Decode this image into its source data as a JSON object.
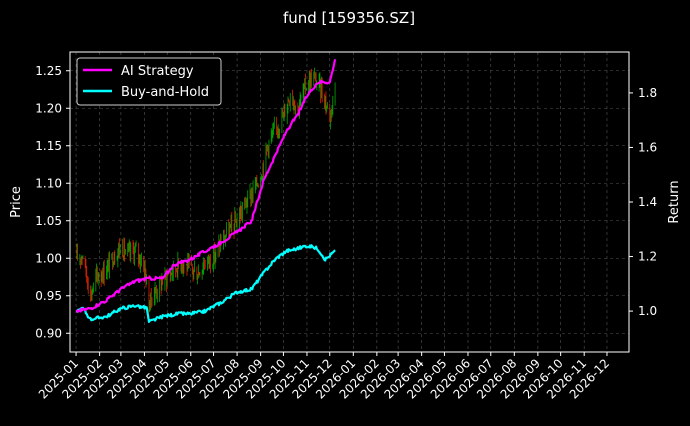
{
  "chart_data": {
    "type": "line",
    "title": "fund [159356.SZ]",
    "ylabel_left": "Price",
    "ylabel_right": "Return",
    "ylim_left": [
      0.875,
      1.275
    ],
    "ylim_right": [
      0.85,
      1.95
    ],
    "yticks_left": [
      "0.90",
      "0.95",
      "1.00",
      "1.05",
      "1.10",
      "1.15",
      "1.20",
      "1.25"
    ],
    "yticks_right": [
      "1.0",
      "1.2",
      "1.4",
      "1.6",
      "1.8"
    ],
    "xticks": [
      "2025-01",
      "2025-02",
      "2025-03",
      "2025-04",
      "2025-05",
      "2025-06",
      "2025-07",
      "2025-08",
      "2025-09",
      "2025-10",
      "2025-11",
      "2025-12",
      "2026-01",
      "2026-02",
      "2026-03",
      "2026-04",
      "2026-05",
      "2026-06",
      "2026-07",
      "2026-08",
      "2026-09",
      "2026-10",
      "2026-11",
      "2026-12"
    ],
    "grid": true,
    "legend_position": "top-left",
    "colors": {
      "up": "#00aa00",
      "down": "#dd2200",
      "ai": "#ff00ff",
      "bh": "#00ffff",
      "background": "#000000"
    },
    "series": [
      {
        "name": "AI Strategy",
        "axis": "right",
        "x": [
          "2025-01-02",
          "2025-01-20",
          "2025-02-10",
          "2025-03-01",
          "2025-03-20",
          "2025-04-07",
          "2025-04-25",
          "2025-05-10",
          "2025-06-01",
          "2025-06-20",
          "2025-07-10",
          "2025-08-01",
          "2025-08-20",
          "2025-09-05",
          "2025-09-20",
          "2025-10-05",
          "2025-10-20",
          "2025-11-01",
          "2025-11-15",
          "2025-12-01",
          "2025-12-08"
        ],
        "values": [
          1.0,
          1.01,
          1.04,
          1.08,
          1.11,
          1.12,
          1.12,
          1.17,
          1.19,
          1.22,
          1.25,
          1.29,
          1.33,
          1.48,
          1.57,
          1.66,
          1.72,
          1.79,
          1.84,
          1.84,
          1.92
        ]
      },
      {
        "name": "Buy-and-Hold",
        "axis": "right",
        "x": [
          "2025-01-02",
          "2025-01-10",
          "2025-01-20",
          "2025-02-10",
          "2025-03-01",
          "2025-03-20",
          "2025-04-05",
          "2025-04-07",
          "2025-04-25",
          "2025-05-15",
          "2025-06-01",
          "2025-06-20",
          "2025-07-10",
          "2025-08-01",
          "2025-08-20",
          "2025-09-05",
          "2025-09-20",
          "2025-10-05",
          "2025-10-20",
          "2025-11-01",
          "2025-11-15",
          "2025-11-25",
          "2025-12-08"
        ],
        "values": [
          1.0,
          1.01,
          0.97,
          0.98,
          1.01,
          1.02,
          1.01,
          0.96,
          0.98,
          0.99,
          0.99,
          1.0,
          1.03,
          1.07,
          1.08,
          1.14,
          1.19,
          1.22,
          1.23,
          1.24,
          1.23,
          1.19,
          1.22
        ]
      },
      {
        "name": "Price",
        "axis": "left",
        "x": [
          "2025-01-02",
          "2025-01-10",
          "2025-01-20",
          "2025-01-28",
          "2025-02-10",
          "2025-02-20",
          "2025-03-01",
          "2025-03-10",
          "2025-03-20",
          "2025-04-01",
          "2025-04-07",
          "2025-04-15",
          "2025-04-25",
          "2025-05-10",
          "2025-05-20",
          "2025-06-01",
          "2025-06-10",
          "2025-06-20",
          "2025-07-01",
          "2025-07-10",
          "2025-07-20",
          "2025-08-01",
          "2025-08-10",
          "2025-08-20",
          "2025-09-01",
          "2025-09-10",
          "2025-09-20",
          "2025-10-01",
          "2025-10-10",
          "2025-10-20",
          "2025-11-01",
          "2025-11-10",
          "2025-11-20",
          "2025-12-01",
          "2025-12-08"
        ],
        "values": [
          1.0,
          1.005,
          0.95,
          0.975,
          0.985,
          1.005,
          1.015,
          1.005,
          1.01,
          0.99,
          0.94,
          0.955,
          0.97,
          0.985,
          0.995,
          0.985,
          0.98,
          0.995,
          1.0,
          1.02,
          1.035,
          1.05,
          1.07,
          1.085,
          1.11,
          1.15,
          1.17,
          1.19,
          1.22,
          1.2,
          1.235,
          1.24,
          1.225,
          1.19,
          1.225
        ]
      }
    ]
  }
}
